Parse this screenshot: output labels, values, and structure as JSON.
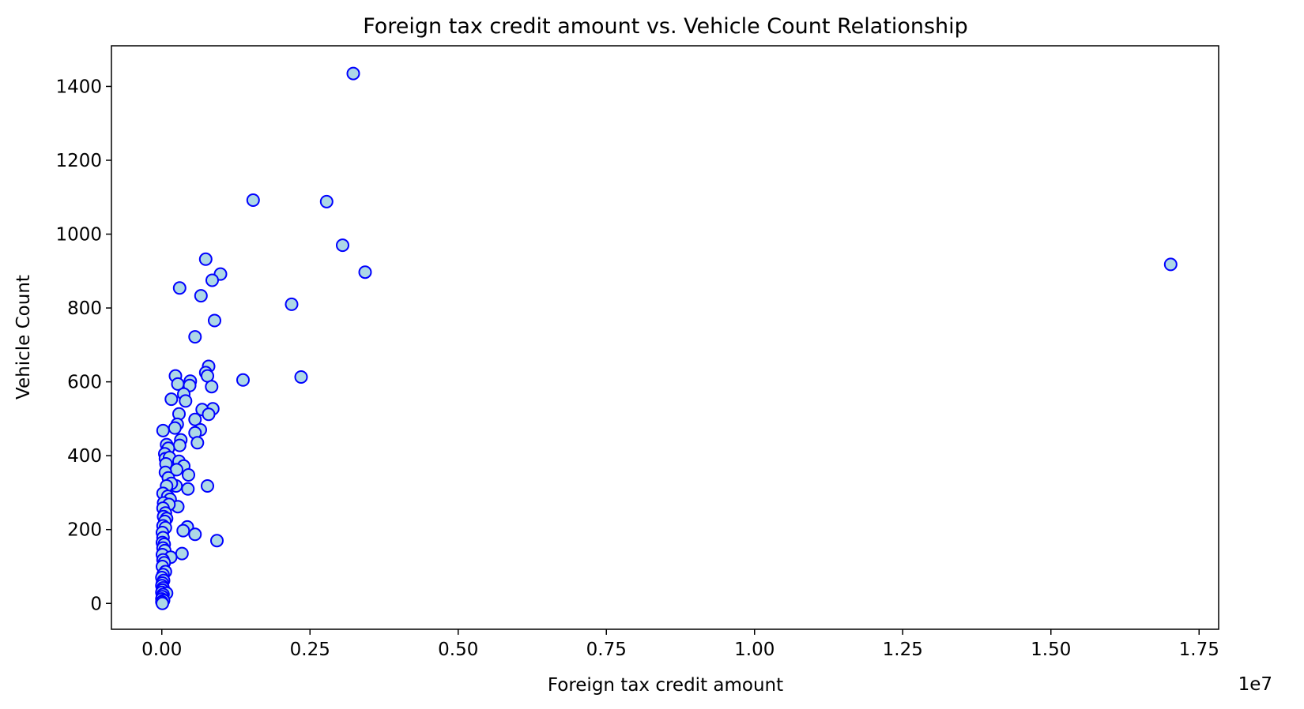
{
  "chart_data": {
    "type": "scatter",
    "title": "Foreign tax credit amount vs. Vehicle Count Relationship",
    "xlabel": "Foreign tax credit amount",
    "ylabel": "Vehicle Count",
    "x_offset_label": "1e7",
    "xlim": [
      -850000,
      17830000
    ],
    "ylim": [
      -70,
      1510
    ],
    "x_ticks": [
      0,
      2500000,
      5000000,
      7500000,
      10000000,
      12500000,
      15000000,
      17500000
    ],
    "x_tick_labels": [
      "0.00",
      "0.25",
      "0.50",
      "0.75",
      "1.00",
      "1.25",
      "1.50",
      "1.75"
    ],
    "y_ticks": [
      0,
      200,
      400,
      600,
      800,
      1000,
      1200,
      1400
    ],
    "y_tick_labels": [
      "0",
      "200",
      "400",
      "600",
      "800",
      "1000",
      "1200",
      "1400"
    ],
    "grid": false,
    "marker_face_color": "#add8e6",
    "marker_edge_color": "#0000ff",
    "points": [
      [
        3230000,
        1435
      ],
      [
        1540000,
        1092
      ],
      [
        2780000,
        1088
      ],
      [
        3050000,
        970
      ],
      [
        3430000,
        897
      ],
      [
        17020000,
        918
      ],
      [
        740000,
        932
      ],
      [
        990000,
        892
      ],
      [
        850000,
        875
      ],
      [
        300000,
        854
      ],
      [
        660000,
        833
      ],
      [
        2190000,
        810
      ],
      [
        890000,
        766
      ],
      [
        560000,
        722
      ],
      [
        2350000,
        613
      ],
      [
        1370000,
        605
      ],
      [
        790000,
        642
      ],
      [
        740000,
        625
      ],
      [
        770000,
        616
      ],
      [
        230000,
        616
      ],
      [
        480000,
        602
      ],
      [
        470000,
        590
      ],
      [
        840000,
        587
      ],
      [
        270000,
        594
      ],
      [
        370000,
        567
      ],
      [
        160000,
        553
      ],
      [
        400000,
        548
      ],
      [
        860000,
        527
      ],
      [
        680000,
        525
      ],
      [
        790000,
        512
      ],
      [
        290000,
        513
      ],
      [
        560000,
        498
      ],
      [
        260000,
        485
      ],
      [
        220000,
        475
      ],
      [
        650000,
        470
      ],
      [
        20000,
        468
      ],
      [
        560000,
        462
      ],
      [
        320000,
        443
      ],
      [
        80000,
        430
      ],
      [
        600000,
        435
      ],
      [
        300000,
        428
      ],
      [
        110000,
        420
      ],
      [
        50000,
        405
      ],
      [
        60000,
        392
      ],
      [
        130000,
        395
      ],
      [
        290000,
        385
      ],
      [
        370000,
        372
      ],
      [
        70000,
        378
      ],
      [
        250000,
        362
      ],
      [
        60000,
        355
      ],
      [
        450000,
        348
      ],
      [
        110000,
        340
      ],
      [
        240000,
        318
      ],
      [
        160000,
        325
      ],
      [
        80000,
        318
      ],
      [
        770000,
        318
      ],
      [
        440000,
        310
      ],
      [
        20000,
        298
      ],
      [
        100000,
        290
      ],
      [
        140000,
        282
      ],
      [
        30000,
        272
      ],
      [
        270000,
        262
      ],
      [
        120000,
        268
      ],
      [
        20000,
        258
      ],
      [
        60000,
        245
      ],
      [
        30000,
        235
      ],
      [
        80000,
        230
      ],
      [
        50000,
        222
      ],
      [
        430000,
        207
      ],
      [
        20000,
        210
      ],
      [
        60000,
        205
      ],
      [
        360000,
        197
      ],
      [
        10000,
        192
      ],
      [
        560000,
        187
      ],
      [
        20000,
        178
      ],
      [
        930000,
        170
      ],
      [
        10000,
        165
      ],
      [
        40000,
        160
      ],
      [
        20000,
        150
      ],
      [
        50000,
        143
      ],
      [
        340000,
        135
      ],
      [
        10000,
        132
      ],
      [
        150000,
        125
      ],
      [
        20000,
        118
      ],
      [
        40000,
        110
      ],
      [
        10000,
        100
      ],
      [
        60000,
        86
      ],
      [
        20000,
        78
      ],
      [
        0,
        70
      ],
      [
        30000,
        62
      ],
      [
        10000,
        55
      ],
      [
        0,
        48
      ],
      [
        20000,
        42
      ],
      [
        10000,
        36
      ],
      [
        0,
        30
      ],
      [
        80000,
        28
      ],
      [
        20000,
        24
      ],
      [
        10000,
        18
      ],
      [
        0,
        12
      ],
      [
        30000,
        8
      ],
      [
        0,
        4
      ],
      [
        10000,
        0
      ]
    ]
  }
}
